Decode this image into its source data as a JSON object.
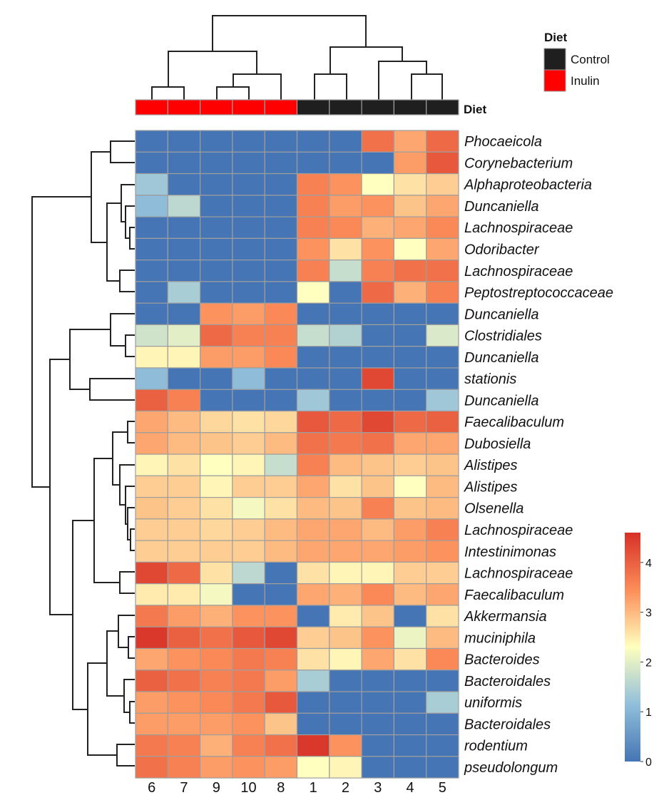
{
  "chart_data": {
    "type": "heatmap",
    "columns": [
      "6",
      "7",
      "9",
      "10",
      "8",
      "1",
      "2",
      "3",
      "4",
      "5"
    ],
    "column_diet": [
      "Inulin",
      "Inulin",
      "Inulin",
      "Inulin",
      "Inulin",
      "Control",
      "Control",
      "Control",
      "Control",
      "Control"
    ],
    "rows": [
      "Phocaeicola",
      "Corynebacterium",
      "Alphaproteobacteria",
      "Duncaniella",
      "Lachnospiraceae",
      "Odoribacter",
      "Lachnospiraceae",
      "Peptostreptococcaceae",
      "Duncaniella",
      "Clostridiales",
      "Duncaniella",
      "stationis",
      "Duncaniella",
      "Faecalibaculum",
      "Dubosiella",
      "Alistipes",
      "Alistipes",
      "Olsenella",
      "Lachnospiraceae",
      "Intestinimonas",
      "Lachnospiraceae",
      "Faecalibaculum",
      "Akkermansia",
      "muciniphila",
      "Bacteroides",
      "Bacteroidales",
      "uniformis",
      "Bacteroidales",
      "rodentium",
      "pseudolongum"
    ],
    "values": [
      [
        0,
        0,
        0,
        0,
        0,
        0,
        0,
        3.8,
        3.2,
        3.9
      ],
      [
        0,
        0,
        0,
        0,
        0,
        0,
        0,
        0,
        3.3,
        4.1
      ],
      [
        1.3,
        0,
        0,
        0,
        0,
        3.6,
        3.4,
        2.3,
        2.6,
        2.8
      ],
      [
        1.1,
        1.6,
        0,
        0,
        0,
        3.6,
        3.3,
        3.4,
        2.9,
        3.2
      ],
      [
        0,
        0,
        0,
        0,
        0,
        3.6,
        3.5,
        3.1,
        3.2,
        3.5
      ],
      [
        0,
        0,
        0,
        0,
        0,
        3.4,
        2.6,
        3.4,
        2.3,
        3.2
      ],
      [
        0,
        0,
        0,
        0,
        0,
        3.6,
        1.7,
        3.6,
        3.8,
        3.8
      ],
      [
        0,
        1.4,
        0,
        0,
        0,
        2.3,
        0,
        3.9,
        3.1,
        3.6
      ],
      [
        0,
        0,
        3.4,
        3.3,
        3.5,
        0,
        0,
        0,
        0,
        0
      ],
      [
        1.8,
        2.0,
        3.9,
        3.6,
        3.6,
        1.7,
        1.5,
        0,
        0,
        1.9
      ],
      [
        2.4,
        2.4,
        3.3,
        3.3,
        3.5,
        0,
        0,
        0,
        0,
        0
      ],
      [
        1.1,
        0,
        0,
        1.1,
        0,
        0,
        0,
        4.3,
        0,
        0
      ],
      [
        4.0,
        3.6,
        0,
        0,
        0,
        1.3,
        0,
        0,
        0,
        1.3
      ],
      [
        3.2,
        3.0,
        2.7,
        2.6,
        2.7,
        4.1,
        3.9,
        4.3,
        3.9,
        4.0
      ],
      [
        3.2,
        3.0,
        2.9,
        2.8,
        3.0,
        3.8,
        3.7,
        3.8,
        3.2,
        3.2
      ],
      [
        2.4,
        2.6,
        2.3,
        2.4,
        1.7,
        3.6,
        3.0,
        2.9,
        2.8,
        2.9
      ],
      [
        2.8,
        2.8,
        2.4,
        2.8,
        2.8,
        3.2,
        2.6,
        2.9,
        2.3,
        3.0
      ],
      [
        2.9,
        2.8,
        2.6,
        2.2,
        2.6,
        3.0,
        2.9,
        3.6,
        2.9,
        3.0
      ],
      [
        2.8,
        2.8,
        2.7,
        2.8,
        3.0,
        3.2,
        3.2,
        3.0,
        3.3,
        3.6
      ],
      [
        2.8,
        2.8,
        2.8,
        2.8,
        3.0,
        3.2,
        3.2,
        3.2,
        3.3,
        3.4
      ],
      [
        4.3,
        3.9,
        2.6,
        1.6,
        0,
        2.6,
        2.4,
        2.4,
        2.8,
        2.8
      ],
      [
        2.5,
        2.5,
        2.2,
        0,
        0,
        3.2,
        3.1,
        3.5,
        3.0,
        3.2
      ],
      [
        3.7,
        3.3,
        3.1,
        3.4,
        3.4,
        0,
        2.5,
        2.9,
        0,
        2.6
      ],
      [
        4.5,
        4.0,
        3.8,
        4.1,
        4.3,
        2.8,
        2.9,
        3.4,
        2.1,
        3.0
      ],
      [
        3.2,
        3.4,
        3.5,
        3.7,
        3.6,
        2.6,
        2.4,
        3.2,
        2.6,
        3.5
      ],
      [
        4.0,
        3.8,
        3.6,
        3.7,
        3.3,
        1.4,
        0,
        0,
        0,
        0
      ],
      [
        3.3,
        3.4,
        3.5,
        3.7,
        4.1,
        0,
        0,
        0,
        0,
        1.4
      ],
      [
        3.3,
        3.3,
        3.3,
        3.4,
        2.9,
        0,
        0,
        0,
        0,
        0
      ],
      [
        3.7,
        3.6,
        3.1,
        3.6,
        3.8,
        4.5,
        3.4,
        0,
        0,
        0
      ],
      [
        3.8,
        3.6,
        3.3,
        3.4,
        3.3,
        2.3,
        2.4,
        0,
        0,
        0
      ]
    ],
    "color_scale": {
      "min": 0,
      "max": 4.6,
      "colors": [
        "#4575b4",
        "#91bfdb",
        "#ffffbf",
        "#fc8d59",
        "#d73027"
      ],
      "ticks": [
        "0",
        "1",
        "2",
        "3",
        "4"
      ]
    },
    "annotation": {
      "title": "Diet",
      "track_label": "Diet",
      "legend": [
        {
          "label": "Control",
          "color": "#1f1f1f"
        },
        {
          "label": "Inulin",
          "color": "#ff0000"
        }
      ]
    }
  }
}
